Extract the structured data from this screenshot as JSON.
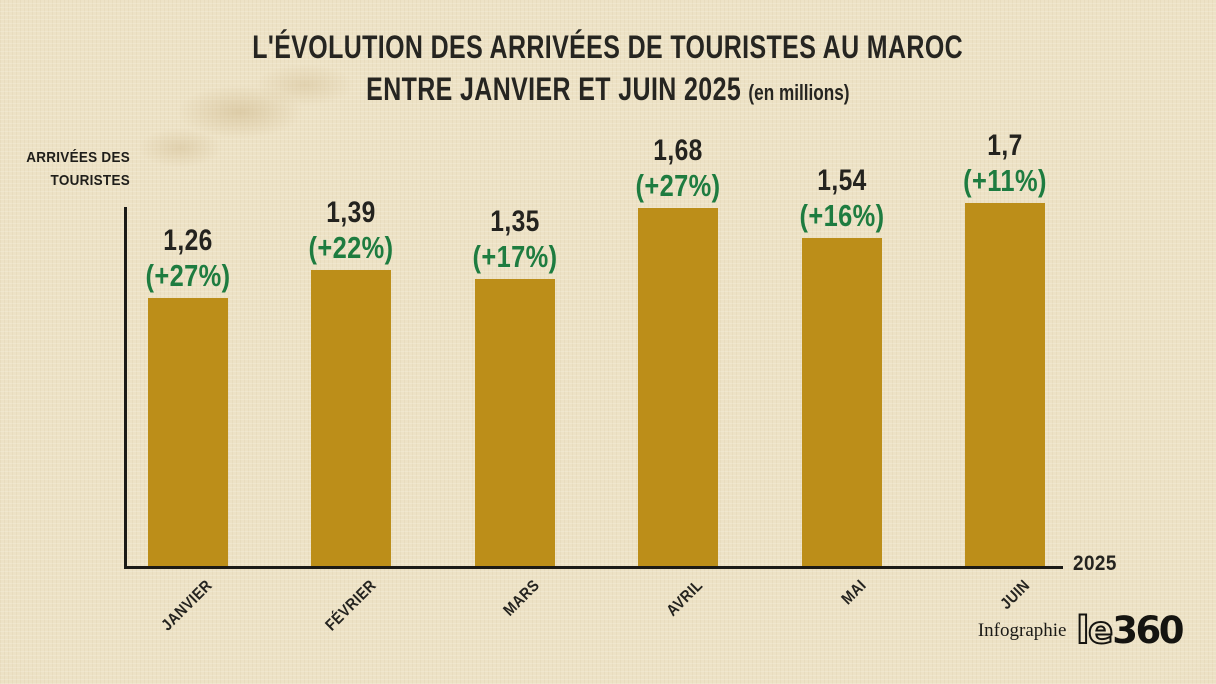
{
  "title": {
    "line1": "L'ÉVOLUTION DES ARRIVÉES DE TOURISTES AU MAROC",
    "line2": "ENTRE JANVIER ET JUIN 2025",
    "line2_suffix": "(en millions)"
  },
  "y_axis": {
    "label_line1": "ARRIVÉES DES",
    "label_line2": "TOURISTES"
  },
  "x_axis": {
    "year_label": "2025"
  },
  "footer": {
    "credit": "Infographie",
    "logo_text_outline": "le",
    "logo_text_solid": "360"
  },
  "colors": {
    "background": "#EDE2C6",
    "bar": "#BC8E19",
    "growth_text": "#1E7C40",
    "value_text": "#24231F",
    "axis": "#1B1A16"
  },
  "chart_data": {
    "type": "bar",
    "title": "L'évolution des arrivées de touristes au Maroc entre janvier et juin 2025",
    "unit": "en millions",
    "categories": [
      "JANVIER",
      "FÉVRIER",
      "MARS",
      "AVRIL",
      "MAI",
      "JUIN"
    ],
    "values": [
      1.26,
      1.39,
      1.35,
      1.68,
      1.54,
      1.7
    ],
    "value_labels": [
      "1,26",
      "1,39",
      "1,35",
      "1,68",
      "1,54",
      "1,7"
    ],
    "growth_labels": [
      "(+27%)",
      "(+22%)",
      "(+17%)",
      "(+27%)",
      "(+16%)",
      "(+11%)"
    ],
    "growth_values_pct": [
      27,
      22,
      17,
      27,
      16,
      11
    ],
    "ylabel": "Arrivées des touristes",
    "xlabel": "2025",
    "ylim": [
      0,
      2.0
    ],
    "grid": false,
    "legend": false
  }
}
